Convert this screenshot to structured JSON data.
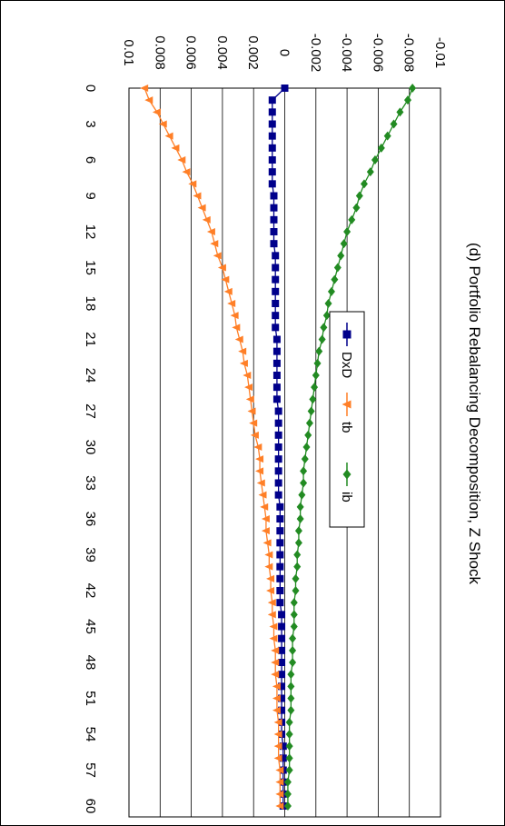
{
  "chart_data": {
    "type": "line",
    "title": "(d) Portfolio Rebalancing Decomposition, Z Shock",
    "xlabel": "",
    "ylabel": "",
    "x": [
      0,
      1,
      2,
      3,
      4,
      5,
      6,
      7,
      8,
      9,
      10,
      11,
      12,
      13,
      14,
      15,
      16,
      17,
      18,
      19,
      20,
      21,
      22,
      23,
      24,
      25,
      26,
      27,
      28,
      29,
      30,
      31,
      32,
      33,
      34,
      35,
      36,
      37,
      38,
      39,
      40,
      41,
      42,
      43,
      44,
      45,
      46,
      47,
      48,
      49,
      50,
      51,
      52,
      53,
      54,
      55,
      56,
      57,
      58,
      59,
      60
    ],
    "x_ticks": [
      0,
      3,
      6,
      9,
      12,
      15,
      18,
      21,
      24,
      27,
      30,
      33,
      36,
      39,
      42,
      45,
      48,
      51,
      54,
      57,
      60
    ],
    "ylim": [
      -0.01,
      0.01
    ],
    "y_ticks": [
      -0.01,
      -0.008,
      -0.006,
      -0.004,
      -0.002,
      0,
      0.002,
      0.004,
      0.006,
      0.008,
      0.01
    ],
    "y_tick_labels": [
      "-0.01",
      "-0.008",
      "-0.006",
      "-0.004",
      "-0.002",
      "0",
      "0.002",
      "0.004",
      "0.006",
      "0.008",
      "0.01"
    ],
    "grid": true,
    "legend_position": "bottom",
    "rotation": "chart rotated 90 degrees clockwise",
    "series": [
      {
        "name": "DxD",
        "color": "#00008B",
        "marker": "square",
        "values": [
          0.0,
          0.0008,
          0.0008,
          0.0008,
          0.0008,
          0.0008,
          0.0008,
          0.0008,
          0.0008,
          0.0007,
          0.0007,
          0.0007,
          0.0007,
          0.0007,
          0.0006,
          0.0006,
          0.0006,
          0.0006,
          0.0006,
          0.0006,
          0.0006,
          0.0005,
          0.0005,
          0.0005,
          0.0005,
          0.0005,
          0.0005,
          0.0004,
          0.0004,
          0.0004,
          0.0004,
          0.0004,
          0.0004,
          0.0004,
          0.0004,
          0.0003,
          0.0003,
          0.0003,
          0.0003,
          0.0003,
          0.0003,
          0.0003,
          0.0003,
          0.0003,
          0.0002,
          0.0002,
          0.0002,
          0.0002,
          0.0002,
          0.0002,
          0.0002,
          0.0002,
          0.0002,
          0.0002,
          0.0002,
          0.0001,
          0.0001,
          0.0001,
          0.0001,
          0.0001,
          0.0001
        ]
      },
      {
        "name": "tb",
        "color": "#FF7F27",
        "marker": "triangle",
        "values": [
          0.009,
          0.0087,
          0.0082,
          0.0078,
          0.0074,
          0.007,
          0.0066,
          0.0063,
          0.0059,
          0.0056,
          0.0053,
          0.005,
          0.0047,
          0.0045,
          0.0043,
          0.004,
          0.0038,
          0.0036,
          0.0034,
          0.0032,
          0.0031,
          0.0029,
          0.0027,
          0.0026,
          0.0024,
          0.0023,
          0.0022,
          0.0021,
          0.002,
          0.0019,
          0.0017,
          0.0016,
          0.0016,
          0.0015,
          0.0014,
          0.0013,
          0.0012,
          0.0012,
          0.0011,
          0.001,
          0.001,
          0.0009,
          0.0009,
          0.0008,
          0.0008,
          0.0007,
          0.0007,
          0.0006,
          0.0006,
          0.0006,
          0.0005,
          0.0005,
          0.0005,
          0.0004,
          0.0004,
          0.0004,
          0.0004,
          0.0003,
          0.0003,
          0.0003,
          0.0003
        ]
      },
      {
        "name": "ib",
        "color": "#228B22",
        "marker": "diamond",
        "values": [
          -0.0082,
          -0.0079,
          -0.0074,
          -0.007,
          -0.0066,
          -0.0062,
          -0.0058,
          -0.0055,
          -0.0051,
          -0.0048,
          -0.0046,
          -0.0043,
          -0.004,
          -0.0038,
          -0.0036,
          -0.0034,
          -0.0032,
          -0.003,
          -0.0028,
          -0.0027,
          -0.0025,
          -0.0024,
          -0.0022,
          -0.0021,
          -0.002,
          -0.0019,
          -0.0018,
          -0.0017,
          -0.0016,
          -0.0015,
          -0.0014,
          -0.0013,
          -0.0012,
          -0.0012,
          -0.0011,
          -0.001,
          -0.001,
          -0.0009,
          -0.0009,
          -0.0008,
          -0.0008,
          -0.0007,
          -0.0007,
          -0.0006,
          -0.0006,
          -0.0006,
          -0.0005,
          -0.0005,
          -0.0005,
          -0.0004,
          -0.0004,
          -0.0004,
          -0.0004,
          -0.0003,
          -0.0003,
          -0.0003,
          -0.0003,
          -0.0003,
          -0.0002,
          -0.0002,
          -0.0002
        ]
      }
    ]
  }
}
